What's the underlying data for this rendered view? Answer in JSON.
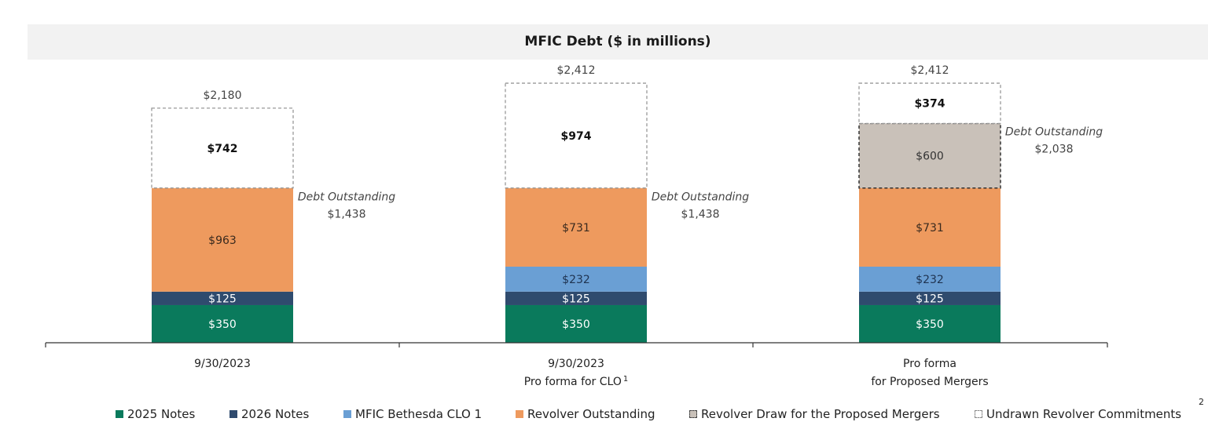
{
  "chart_data": {
    "type": "bar",
    "stacked": true,
    "title": "MFIC Debt ($ in millions)",
    "categories": [
      {
        "line1": "9/30/2023",
        "line2": "",
        "superscript": ""
      },
      {
        "line1": "9/30/2023",
        "line2": "Pro forma for CLO",
        "superscript": "1"
      },
      {
        "line1": "Pro forma",
        "line2": "for Proposed Mergers",
        "superscript": ""
      }
    ],
    "series": [
      {
        "name": "2025 Notes",
        "color": "#0a7a5c",
        "style": "solid",
        "values": [
          350,
          350,
          350
        ],
        "labels": [
          "$350",
          "$350",
          "$350"
        ],
        "label_color": "#ffffff"
      },
      {
        "name": "2026 Notes",
        "color": "#2f4b6e",
        "style": "solid",
        "values": [
          125,
          125,
          125
        ],
        "labels": [
          "$125",
          "$125",
          "$125"
        ],
        "label_color": "#ffffff"
      },
      {
        "name": "MFIC Bethesda CLO 1",
        "color": "#6a9fd4",
        "style": "solid",
        "values": [
          0,
          232,
          232
        ],
        "labels": [
          "",
          "$232",
          "$232"
        ],
        "label_color": "#1f3350"
      },
      {
        "name": "Revolver Outstanding",
        "color": "#ee9a5e",
        "style": "solid",
        "values": [
          963,
          731,
          731
        ],
        "labels": [
          "$963",
          "$731",
          "$731"
        ],
        "label_color": "#3a2a1e"
      },
      {
        "name": "Revolver Draw for the Proposed Mergers",
        "color": "#c9c1b9",
        "style": "dashed-dark",
        "values": [
          0,
          0,
          600
        ],
        "labels": [
          "",
          "",
          "$600"
        ],
        "label_color": "#333333"
      },
      {
        "name": "Undrawn Revolver Commitments",
        "color": "#ffffff",
        "style": "dashed-light",
        "values": [
          742,
          974,
          374
        ],
        "labels": [
          "$742",
          "$974",
          "$374"
        ],
        "label_color": "#111111"
      }
    ],
    "totals": [
      "$2,180",
      "$2,412",
      "$2,412"
    ],
    "annotations": [
      {
        "category": 0,
        "label": "Debt Outstanding",
        "value": "$1,438",
        "level": 1438
      },
      {
        "category": 1,
        "label": "Debt Outstanding",
        "value": "$1,438",
        "level": 1438
      },
      {
        "category": 2,
        "label": "Debt Outstanding",
        "value": "$2,038",
        "level": 2038
      }
    ],
    "ylim": [
      0,
      2500
    ],
    "grid": false,
    "legend_position": "bottom",
    "footnote": "2"
  }
}
